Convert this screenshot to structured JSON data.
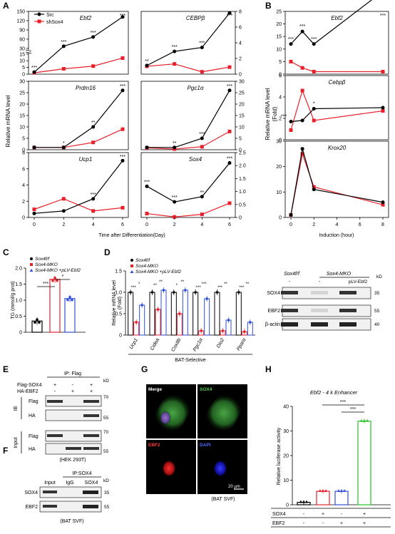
{
  "panel_letters": [
    "A",
    "B",
    "C",
    "D",
    "E",
    "F",
    "G",
    "H"
  ],
  "colors": {
    "src": "#000000",
    "shsox4": "#e8202a",
    "blue": "#2f4fd8",
    "green": "#27c227",
    "black": "#000000"
  },
  "panelA": {
    "legend": [
      "Src",
      "shSox4"
    ],
    "ylabel": "Relative mRNA level",
    "xlabel": "Time after Differentiation(Day)",
    "xticks": [
      "0",
      "2",
      "4",
      "6"
    ],
    "subplots": [
      {
        "gene": "Ebf2",
        "ticks": [
          "0",
          "5",
          "10",
          "15",
          "30",
          "60",
          "90",
          "120",
          "150"
        ],
        "stars": [
          "***",
          "***",
          "***",
          "***"
        ],
        "src": [
          1.5,
          37,
          67,
          132
        ],
        "sh": [
          1,
          4,
          6,
          12
        ]
      },
      {
        "gene": "CEBPβ",
        "ticks": [
          "0",
          "2",
          "4",
          "6",
          "8"
        ],
        "stars": [
          "**",
          "***",
          "***",
          "***"
        ],
        "src": [
          1.1,
          2.9,
          3.4,
          7.8
        ],
        "sh": [
          1,
          1.3,
          0.3,
          0.9
        ]
      },
      {
        "gene": "Prdm16",
        "ticks": [
          "0",
          "5",
          "10",
          "15",
          "20",
          "25",
          "30"
        ],
        "stars": [
          "*",
          "**",
          "***"
        ],
        "src": [
          1,
          1,
          10,
          26
        ],
        "sh": [
          1,
          1,
          3.2,
          9
        ]
      },
      {
        "gene": "Pgc1α",
        "ticks": [
          "0",
          "5",
          "10",
          "15",
          "20",
          "25",
          "30"
        ],
        "stars": [
          "**",
          "***",
          "***"
        ],
        "src": [
          1,
          1,
          5,
          26
        ],
        "sh": [
          0.8,
          0.3,
          1.3,
          8
        ]
      },
      {
        "gene": "Ucp1",
        "ticks": [
          "0",
          "2",
          "4",
          "6",
          "8"
        ],
        "stars": [
          "***",
          "***"
        ],
        "src": [
          0.5,
          0.8,
          2.3,
          7
        ],
        "sh": [
          1,
          2.3,
          0.8,
          1.2
        ]
      },
      {
        "gene": "Sox4",
        "ticks": [
          "0",
          "0.5",
          "1.0",
          "1.5",
          "2.0",
          "2.5"
        ],
        "stars": [
          "***",
          "***",
          "**",
          "***"
        ],
        "src": [
          1.2,
          0.6,
          0.8,
          2.1
        ],
        "sh": [
          0.15,
          0.02,
          0.12,
          0.55
        ]
      }
    ]
  },
  "panelB": {
    "ylabel": "Relative mRNA level",
    "ylabel2": "(Fold)",
    "xlabel": "Induction (hour)",
    "xticks": [
      "0",
      "2",
      "4",
      "6",
      "8"
    ],
    "subplots": [
      {
        "gene": "Ebf2",
        "ticks": [
          "0",
          "5",
          "10",
          "15",
          "20",
          "25"
        ],
        "stars": [
          "***",
          "***",
          "***",
          "***"
        ],
        "x": [
          0,
          1,
          2,
          8
        ],
        "src": [
          12,
          17,
          12,
          33
        ],
        "sh": [
          5,
          2.5,
          1,
          1
        ]
      },
      {
        "gene": "Cebpβ",
        "ticks": [
          "0",
          "2",
          "4",
          "6"
        ],
        "stars": [
          "***",
          "*"
        ],
        "x": [
          0,
          1,
          2,
          8
        ],
        "src": [
          1.7,
          1.8,
          2.9,
          3.0
        ],
        "sh": [
          0.9,
          4.6,
          1.8,
          2.7
        ]
      },
      {
        "gene": "Krox20",
        "ticks": [
          "0",
          "10",
          "20",
          "30"
        ],
        "stars": [],
        "x": [
          0,
          1,
          2,
          8
        ],
        "src": [
          1,
          27,
          11,
          6
        ],
        "sh": [
          1,
          25,
          12,
          5
        ]
      }
    ]
  },
  "panelC": {
    "legend": [
      "Sox4f/f",
      "Sox4-MKO",
      "Sox4-MKO +pLV-Ebf2"
    ],
    "ylabel": "TG (mmol/g prot)",
    "ticks": [
      "0",
      "0.5",
      "1.0",
      "1.5",
      "2.0"
    ],
    "values": [
      0.35,
      1.65,
      1.05
    ],
    "stars": [
      "***",
      "*"
    ]
  },
  "panelD": {
    "legend": [
      "Sox4f/f",
      "Sox4-MKO",
      "Sox4-MKO +pLV-Ebf2"
    ],
    "ylabel": "Relative mRNA level",
    "ylabel2": "(Fold)",
    "ticks": [
      "0",
      "0.5",
      "1.0",
      "1.5"
    ],
    "genes": [
      "Ucp1",
      "Cidea",
      "Cox8b",
      "Pgc1α",
      "Dio2",
      "Pparα"
    ],
    "groups": [
      [
        1.0,
        0.3,
        0.7
      ],
      [
        1.0,
        0.6,
        1.05
      ],
      [
        1.0,
        0.5,
        1.05
      ],
      [
        1.0,
        0.1,
        0.85
      ],
      [
        1.0,
        0.1,
        0.35
      ],
      [
        1.0,
        0.08,
        0.3
      ]
    ],
    "stars": [
      [
        "***",
        "*"
      ],
      [
        "**",
        "**"
      ],
      [
        "*",
        "**"
      ],
      [
        "***",
        "***"
      ],
      [
        "***",
        "**"
      ],
      [
        "***",
        "**"
      ]
    ],
    "group_label": "BAT-Selective",
    "blot": {
      "head1": "Sox4f/f",
      "head2": "Sox4-MKO",
      "head3": "pLV-Ebf2",
      "kd": "kD",
      "rows": [
        {
          "label": "SOX4",
          "kd": "35"
        },
        {
          "label": "EBF2",
          "kd": "55"
        },
        {
          "label": "β-actin",
          "kd": "40"
        }
      ]
    }
  },
  "panelE": {
    "row1": "Flag-SOX4",
    "row2": "HA-EBF2",
    "pm1": [
      "+",
      "-",
      "+"
    ],
    "pm2": [
      "-",
      "+",
      "+"
    ],
    "ip": "IP: Flag",
    "ib": "IB",
    "input": "Input",
    "flag": "Flag",
    "ha": "HA",
    "kd_head": "kD",
    "kd": [
      "70",
      "55",
      "70",
      "55"
    ],
    "cell": "(HEK 293T)"
  },
  "panelF": {
    "ip": "IP:SOX4",
    "cols": [
      "Input",
      "IgG",
      "SOX4"
    ],
    "kd_head": "kD",
    "rows": [
      {
        "label": "SOX4",
        "kd": "35"
      },
      {
        "label": "EBF2",
        "kd": "55"
      }
    ],
    "cell": "(BAT SVF)"
  },
  "panelG": {
    "labels": [
      "Merge",
      "SOX4",
      "EBF2",
      "DAPI"
    ],
    "scale": "20 μm",
    "cell": "(BAT SVF)"
  },
  "panelH": {
    "title": "Ebf2 - 4 k Enhancer",
    "ylabel": "Relative luciferase activity",
    "ticks": [
      "0",
      "10",
      "20",
      "30",
      "40"
    ],
    "values": [
      1,
      5.5,
      5.5,
      34
    ],
    "stars": [
      "***",
      "***"
    ],
    "row1": "SOX4",
    "row2": "EBF2",
    "pm1": [
      "-",
      "+",
      "-",
      "+"
    ],
    "pm2": [
      "-",
      "-",
      "+",
      "+"
    ]
  }
}
